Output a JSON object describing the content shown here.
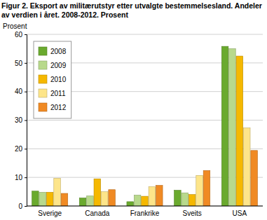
{
  "chart_data": {
    "type": "bar",
    "title": "Figur 2. Eksport av militærutstyr etter utvalgte bestemmelsesland. Andeler av verdien i året. 2008-2012. Prosent",
    "y_label": "Prosent",
    "categories": [
      "Sverige",
      "Canada",
      "Frankrike",
      "Sveits",
      "USA"
    ],
    "series": [
      {
        "name": "2008",
        "color": "#6aaa2e",
        "values": [
          5.2,
          2.8,
          1.5,
          5.5,
          55.8
        ]
      },
      {
        "name": "2009",
        "color": "#b8d98c",
        "values": [
          4.8,
          3.5,
          3.8,
          4.6,
          55.0
        ]
      },
      {
        "name": "2010",
        "color": "#f5b800",
        "values": [
          4.8,
          9.5,
          3.4,
          4.0,
          52.4
        ]
      },
      {
        "name": "2011",
        "color": "#fde58a",
        "values": [
          9.7,
          5.0,
          6.8,
          10.7,
          27.3
        ]
      },
      {
        "name": "2012",
        "color": "#f08a24",
        "values": [
          4.4,
          5.7,
          7.2,
          12.4,
          19.4
        ]
      }
    ],
    "ylim": [
      0,
      60
    ],
    "yticks": [
      0,
      10,
      20,
      30,
      40,
      50,
      60
    ],
    "grid": true,
    "legend": "top-left"
  }
}
